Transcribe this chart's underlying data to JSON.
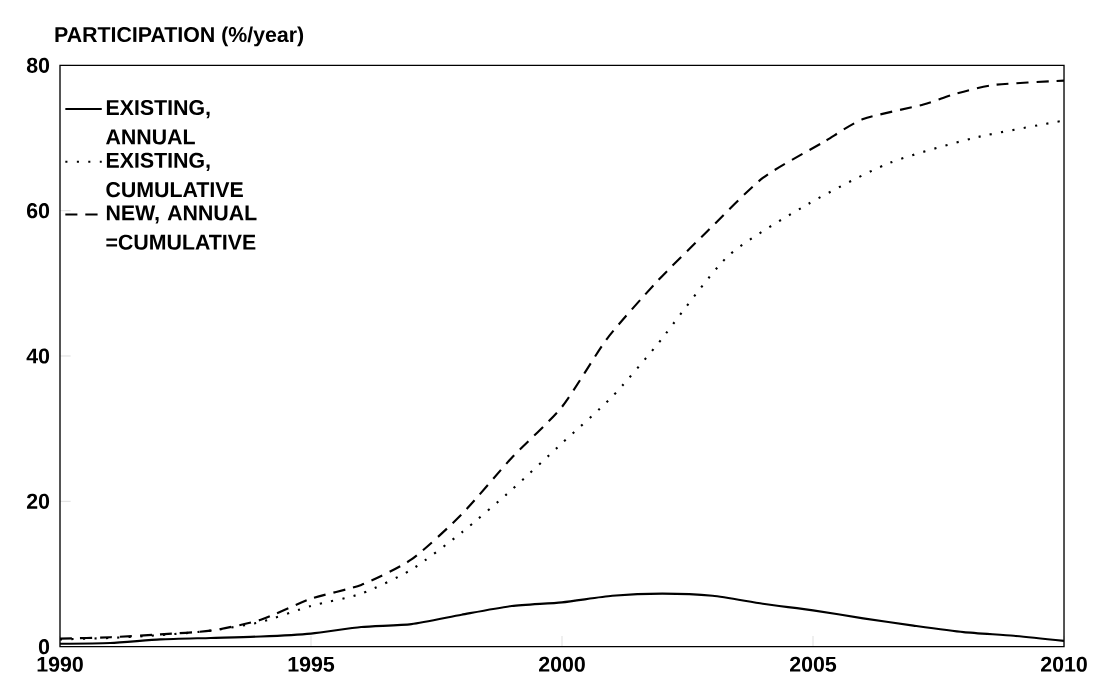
{
  "chart_data": {
    "type": "line",
    "ylabel": "PARTICIPATION (%/year)",
    "x": [
      1990,
      1991,
      1992,
      1993,
      1994,
      1995,
      1996,
      1997,
      1998,
      1999,
      2000,
      2001,
      2002,
      2003,
      2004,
      2005,
      2006,
      2007,
      2008,
      2009,
      2010
    ],
    "series": [
      {
        "name": "EXISTING, ANNUAL",
        "color": "#000000",
        "line_style": "solid",
        "values": [
          0.4,
          0.5,
          1.0,
          1.2,
          1.4,
          1.8,
          2.7,
          3.1,
          4.4,
          5.6,
          6.1,
          7.0,
          7.3,
          7.0,
          5.9,
          5.0,
          3.9,
          2.9,
          2.0,
          1.5,
          0.8
        ]
      },
      {
        "name": "EXISTING, CUMULATIVE",
        "color": "#000000",
        "line_style": "dotted",
        "x": [
          1990,
          1991,
          1992,
          1993,
          1994,
          1995,
          1996,
          1997,
          1998,
          1999,
          2000,
          2001,
          2001.9,
          2003.3,
          2004.9,
          2006.5,
          2008.2,
          2010
        ],
        "values": [
          1.0,
          1.2,
          1.6,
          2.2,
          3.4,
          5.6,
          7.3,
          10.6,
          15.7,
          21.6,
          28,
          34.4,
          41.6,
          53.7,
          60.9,
          66.5,
          70,
          72.4
        ]
      },
      {
        "name": "NEW, ANNUAL =CUMULATIVE",
        "color": "#000000",
        "line_style": "dashed",
        "x": [
          1990,
          1991,
          1992,
          1993,
          1994,
          1995,
          1996,
          1997,
          1998,
          1999,
          2000,
          2000.9,
          2001.9,
          2002.9,
          2004.0,
          2005.2,
          2006.0,
          2007.2,
          2007.8,
          2008.6,
          2010
        ],
        "values": [
          1.1,
          1.3,
          1.7,
          2.2,
          3.7,
          6.6,
          8.5,
          12,
          18.2,
          26,
          33,
          42.4,
          50.3,
          57.2,
          64.5,
          69.4,
          72.6,
          74.6,
          76,
          77.3,
          77.9
        ]
      }
    ],
    "xlim": [
      1990,
      2010
    ],
    "ylim": [
      0,
      80
    ],
    "xticks": [
      1990,
      1995,
      2000,
      2005,
      2010
    ],
    "yticks": [
      0,
      20,
      40,
      60,
      80
    ],
    "legend": "top left"
  }
}
